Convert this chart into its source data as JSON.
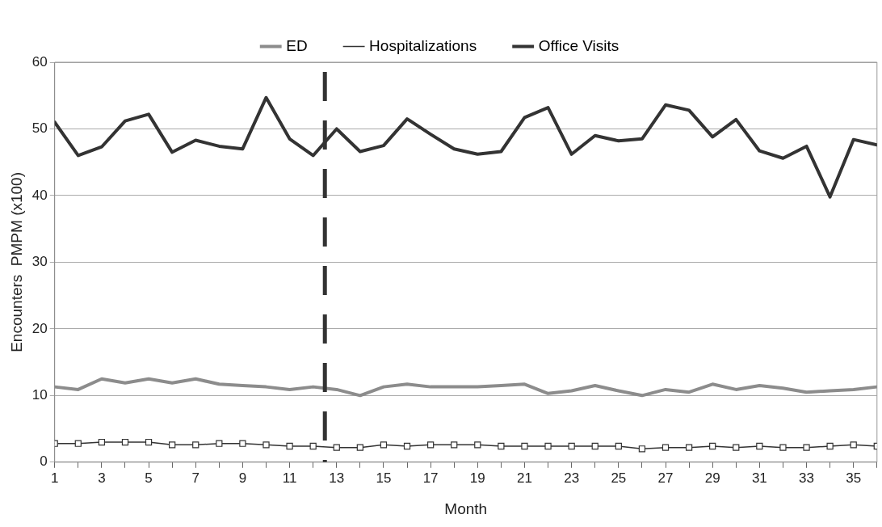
{
  "chart_data": {
    "type": "line",
    "xlabel": "Month",
    "ylabel": "Encounters  PMPM (x100)",
    "x": [
      1,
      2,
      3,
      4,
      5,
      6,
      7,
      8,
      9,
      10,
      11,
      12,
      13,
      14,
      15,
      16,
      17,
      18,
      19,
      20,
      21,
      22,
      23,
      24,
      25,
      26,
      27,
      28,
      29,
      30,
      31,
      32,
      33,
      34,
      35,
      36
    ],
    "series": [
      {
        "name": "ED",
        "color": "#8c8c8c",
        "marker": "none",
        "values": [
          11.3,
          10.9,
          12.5,
          11.9,
          12.5,
          11.9,
          12.5,
          11.7,
          11.5,
          11.3,
          10.9,
          11.3,
          10.9,
          10,
          11.3,
          11.7,
          11.3,
          11.3,
          11.3,
          11.5,
          11.7,
          10.3,
          10.7,
          11.5,
          10.7,
          10,
          10.9,
          10.5,
          11.7,
          10.9,
          11.5,
          11.1,
          10.5,
          10.7,
          10.9,
          11.3
        ]
      },
      {
        "name": "Hospitalizations",
        "color": "#333333",
        "marker": "square",
        "values": [
          2.8,
          2.8,
          3.0,
          3.0,
          3.0,
          2.6,
          2.6,
          2.8,
          2.8,
          2.6,
          2.4,
          2.4,
          2.2,
          2.2,
          2.6,
          2.4,
          2.6,
          2.6,
          2.6,
          2.4,
          2.4,
          2.4,
          2.4,
          2.4,
          2.4,
          2.0,
          2.2,
          2.2,
          2.4,
          2.2,
          2.4,
          2.2,
          2.2,
          2.4,
          2.6,
          2.4
        ]
      },
      {
        "name": "Office Visits",
        "color": "#333333",
        "marker": "none",
        "values": [
          51,
          46,
          47.3,
          51.2,
          52.2,
          46.5,
          48.3,
          47.4,
          47,
          54.7,
          48.5,
          46,
          50,
          46.6,
          47.5,
          51.5,
          49.2,
          47,
          46.2,
          46.6,
          51.7,
          53.2,
          46.2,
          49,
          48.2,
          48.5,
          53.6,
          52.8,
          48.8,
          51.4,
          46.7,
          45.6,
          47.4,
          39.8,
          48.4,
          47.6
        ]
      }
    ],
    "xlim": [
      1,
      36
    ],
    "xticks": [
      1,
      {
        "value": 2,
        "label": null
      },
      3,
      {
        "value": 4,
        "label": null
      },
      5,
      {
        "value": 6,
        "label": null
      },
      7,
      {
        "value": 8,
        "label": null
      },
      9,
      {
        "value": 10,
        "label": null
      },
      11,
      {
        "value": 12,
        "label": null
      },
      13,
      {
        "value": 14,
        "label": null
      },
      15,
      {
        "value": 16,
        "label": null
      },
      17,
      {
        "value": 18,
        "label": null
      },
      19,
      {
        "value": 20,
        "label": null
      },
      21,
      {
        "value": 22,
        "label": null
      },
      23,
      {
        "value": 24,
        "label": null
      },
      25,
      {
        "value": 26,
        "label": null
      },
      27,
      {
        "value": 28,
        "label": null
      },
      29,
      {
        "value": 30,
        "label": null
      },
      31,
      {
        "value": 32,
        "label": null
      },
      33,
      {
        "value": 34,
        "label": null
      },
      35,
      {
        "value": 36,
        "label": null
      }
    ],
    "ylim": [
      0,
      60
    ],
    "yticks": [
      0,
      10,
      20,
      30,
      40,
      50,
      60
    ],
    "ref_lines": [
      {
        "axis": "x",
        "value": 12.5,
        "color": "#333333",
        "line_style": "dashed"
      }
    ],
    "grid": "y",
    "legend": "top"
  }
}
